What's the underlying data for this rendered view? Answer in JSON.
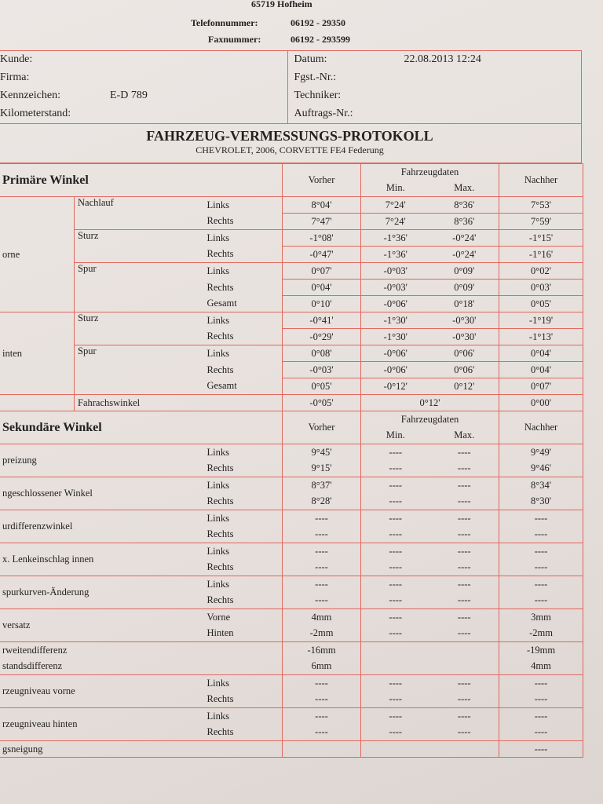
{
  "header": {
    "city": "65719 Hofheim",
    "phone_label": "Telefonnummer:",
    "phone": "06192 - 29350",
    "fax_label": "Faxnummer:",
    "fax": "06192 - 293599"
  },
  "info": {
    "left": [
      {
        "label": "Kunde:"
      },
      {
        "label": "Firma:"
      },
      {
        "label": "Kennzeichen:",
        "value": "E-D 789"
      },
      {
        "label": "Kilometerstand:"
      }
    ],
    "right": [
      {
        "label": "Datum:",
        "value": "22.08.2013  12:24"
      },
      {
        "label": "Fgst.-Nr.:"
      },
      {
        "label": "Techniker:"
      },
      {
        "label": "Auftrags-Nr.:"
      }
    ]
  },
  "title": "FAHRZEUG-VERMESSUNGS-PROTOKOLL",
  "subtitle": "CHEVROLET, 2006, CORVETTE FE4 Federung",
  "primary": {
    "heading": "Primäre Winkel",
    "columns": {
      "before": "Vorher",
      "spec": "Fahrzeugdaten",
      "min": "Min.",
      "max": "Max.",
      "after": "Nachher"
    },
    "axles": [
      {
        "label": "orne",
        "groups": [
          {
            "label": "Nachlauf",
            "rows": [
              {
                "side": "Links",
                "values": [
                  "8°04'",
                  "7°24'",
                  "8°36'",
                  "7°53'"
                ]
              },
              {
                "side": "Rechts",
                "values": [
                  "7°47'",
                  "7°24'",
                  "8°36'",
                  "7°59'"
                ]
              }
            ]
          },
          {
            "label": "Sturz",
            "rows": [
              {
                "side": "Links",
                "values": [
                  "-1°08'",
                  "-1°36'",
                  "-0°24'",
                  "-1°15'"
                ]
              },
              {
                "side": "Rechts",
                "values": [
                  "-0°47'",
                  "-1°36'",
                  "-0°24'",
                  "-1°16'"
                ]
              }
            ]
          },
          {
            "label": "Spur",
            "rows": [
              {
                "side": "Links",
                "values": [
                  "0°07'",
                  "-0°03'",
                  "0°09'",
                  "0°02'"
                ]
              },
              {
                "side": "Rechts",
                "values": [
                  "0°04'",
                  "-0°03'",
                  "0°09'",
                  "0°03'"
                ]
              },
              {
                "side": "Gesamt",
                "values": [
                  "0°10'",
                  "-0°06'",
                  "0°18'",
                  "0°05'"
                ]
              }
            ]
          }
        ]
      },
      {
        "label": "inten",
        "groups": [
          {
            "label": "Sturz",
            "rows": [
              {
                "side": "Links",
                "values": [
                  "-0°41'",
                  "-1°30'",
                  "-0°30'",
                  "-1°19'"
                ]
              },
              {
                "side": "Rechts",
                "values": [
                  "-0°29'",
                  "-1°30'",
                  "-0°30'",
                  "-1°13'"
                ]
              }
            ]
          },
          {
            "label": "Spur",
            "rows": [
              {
                "side": "Links",
                "values": [
                  "0°08'",
                  "-0°06'",
                  "0°06'",
                  "0°04'"
                ]
              },
              {
                "side": "Rechts",
                "values": [
                  "-0°03'",
                  "-0°06'",
                  "0°06'",
                  "0°04'"
                ]
              },
              {
                "side": "Gesamt",
                "values": [
                  "0°05'",
                  "-0°12'",
                  "0°12'",
                  "0°07'"
                ]
              }
            ]
          }
        ]
      }
    ],
    "thrust": {
      "label": "Fahrachswinkel",
      "before": "-0°05'",
      "spec": "0°12'",
      "after": "0°00'"
    }
  },
  "secondary": {
    "heading": "Sekundäre Winkel",
    "columns": {
      "before": "Vorher",
      "spec": "Fahrzeugdaten",
      "min": "Min.",
      "max": "Max.",
      "after": "Nachher"
    },
    "rows": [
      {
        "label": "preizung",
        "lines": [
          {
            "side": "Links",
            "values": [
              "9°45'",
              "----",
              "----",
              "9°49'"
            ]
          },
          {
            "side": "Rechts",
            "values": [
              "9°15'",
              "----",
              "----",
              "9°46'"
            ]
          }
        ]
      },
      {
        "label": "ngeschlossener Winkel",
        "lines": [
          {
            "side": "Links",
            "values": [
              "8°37'",
              "----",
              "----",
              "8°34'"
            ]
          },
          {
            "side": "Rechts",
            "values": [
              "8°28'",
              "----",
              "----",
              "8°30'"
            ]
          }
        ]
      },
      {
        "label": "urdifferenzwinkel",
        "lines": [
          {
            "side": "Links",
            "values": [
              "----",
              "----",
              "----",
              "----"
            ]
          },
          {
            "side": "Rechts",
            "values": [
              "----",
              "----",
              "----",
              "----"
            ]
          }
        ]
      },
      {
        "label": "x. Lenkeinschlag innen",
        "lines": [
          {
            "side": "Links",
            "values": [
              "----",
              "----",
              "----",
              "----"
            ]
          },
          {
            "side": "Rechts",
            "values": [
              "----",
              "----",
              "----",
              "----"
            ]
          }
        ]
      },
      {
        "label": "spurkurven-Änderung",
        "lines": [
          {
            "side": "Links",
            "values": [
              "----",
              "----",
              "----",
              "----"
            ]
          },
          {
            "side": "Rechts",
            "values": [
              "----",
              "----",
              "----",
              "----"
            ]
          }
        ]
      },
      {
        "label": "versatz",
        "lines": [
          {
            "side": "Vorne",
            "values": [
              "4mm",
              "----",
              "----",
              "3mm"
            ]
          },
          {
            "side": "Hinten",
            "values": [
              "-2mm",
              "----",
              "----",
              "-2mm"
            ]
          }
        ]
      },
      {
        "lines": [
          {
            "label": "rweitendifferenz",
            "values": [
              "-16mm",
              null,
              null,
              "-19mm"
            ]
          },
          {
            "label": "standsdifferenz",
            "values": [
              "6mm",
              null,
              null,
              "4mm"
            ]
          }
        ]
      },
      {
        "label": "rzeugniveau vorne",
        "lines": [
          {
            "side": "Links",
            "values": [
              "----",
              "----",
              "----",
              "----"
            ]
          },
          {
            "side": "Rechts",
            "values": [
              "----",
              "----",
              "----",
              "----"
            ]
          }
        ]
      },
      {
        "label": "rzeugniveau hinten",
        "lines": [
          {
            "side": "Links",
            "values": [
              "----",
              "----",
              "----",
              "----"
            ]
          },
          {
            "side": "Rechts",
            "values": [
              "----",
              "----",
              "----",
              "----"
            ]
          }
        ]
      },
      {
        "label": "gsneigung",
        "lines": [
          {
            "values": [
              null,
              null,
              null,
              "----"
            ]
          }
        ]
      }
    ]
  }
}
